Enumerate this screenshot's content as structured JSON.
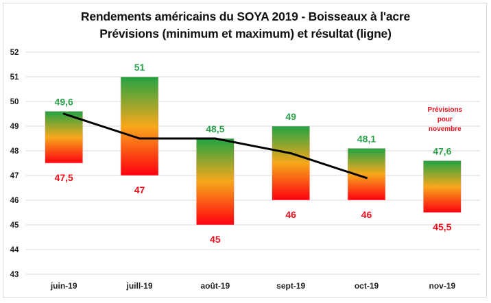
{
  "chart_data": {
    "type": "bar",
    "subtype": "floating-range-with-line",
    "title": "Rendements américains du SOYA 2019 - Boisseaux à l'acre",
    "subtitle": "Prévisions (minimum et maximum) et résultat (ligne)",
    "xlabel": "",
    "ylabel": "",
    "ylim": [
      43,
      52
    ],
    "yticks": [
      "43",
      "44",
      "45",
      "46",
      "47",
      "48",
      "49",
      "50",
      "51",
      "52"
    ],
    "grid": true,
    "categories": [
      "juin-19",
      "juill-19",
      "août-19",
      "sept-19",
      "oct-19",
      "nov-19"
    ],
    "series": [
      {
        "name": "Minimum",
        "values": [
          47.5,
          47,
          45,
          46,
          46,
          45.5
        ],
        "labels": [
          "47,5",
          "47",
          "45",
          "46",
          "46",
          "45,5"
        ],
        "color": "#e8101c"
      },
      {
        "name": "Maximum",
        "values": [
          49.6,
          51,
          48.5,
          49,
          48.1,
          47.6
        ],
        "labels": [
          "49,6",
          "51",
          "48,5",
          "49",
          "48,1",
          "47,6"
        ],
        "color": "#2aa14a"
      },
      {
        "name": "Résultat",
        "type": "line",
        "values": [
          49.5,
          48.5,
          48.5,
          47.9,
          46.9,
          null
        ],
        "color": "#000000"
      }
    ],
    "gradient": {
      "top": "#22a344",
      "middle": "#f7a81b",
      "bottom": "#ff0010"
    },
    "annotation": {
      "lines": [
        "Prévisions",
        "pour",
        "novembre"
      ],
      "category": "nov-19",
      "color": "#e8101c"
    }
  }
}
